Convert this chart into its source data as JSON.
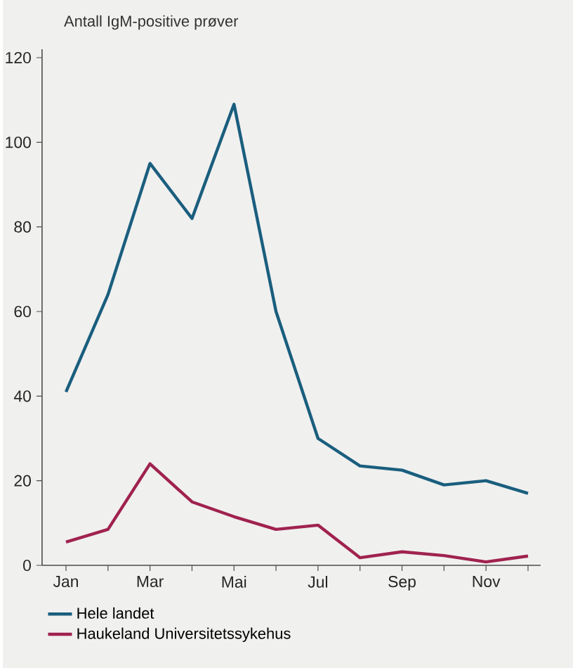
{
  "chart_data": {
    "type": "line",
    "ylabel": "Antall IgM-positive prøver",
    "categories": [
      "Jan",
      null,
      "Mar",
      null,
      "Mai",
      null,
      "Jul",
      null,
      "Sep",
      null,
      "Nov",
      null
    ],
    "series": [
      {
        "name": "Hele landet",
        "color": "#1a5e7e",
        "values": [
          41,
          64,
          95,
          82,
          109,
          60,
          30,
          23.5,
          22.5,
          19,
          20,
          17
        ]
      },
      {
        "name": "Haukeland Universitetssykehus",
        "color": "#a0224e",
        "values": [
          5.5,
          8.5,
          24,
          15,
          11.5,
          8.5,
          9.5,
          1.8,
          3.2,
          2.3,
          0.8,
          2.2
        ]
      }
    ],
    "ylim": [
      0,
      122
    ],
    "yticks": [
      0,
      20,
      40,
      60,
      80,
      100,
      120
    ],
    "grid": false,
    "legend": "bottom",
    "marker": "none",
    "line_style": "solid"
  }
}
